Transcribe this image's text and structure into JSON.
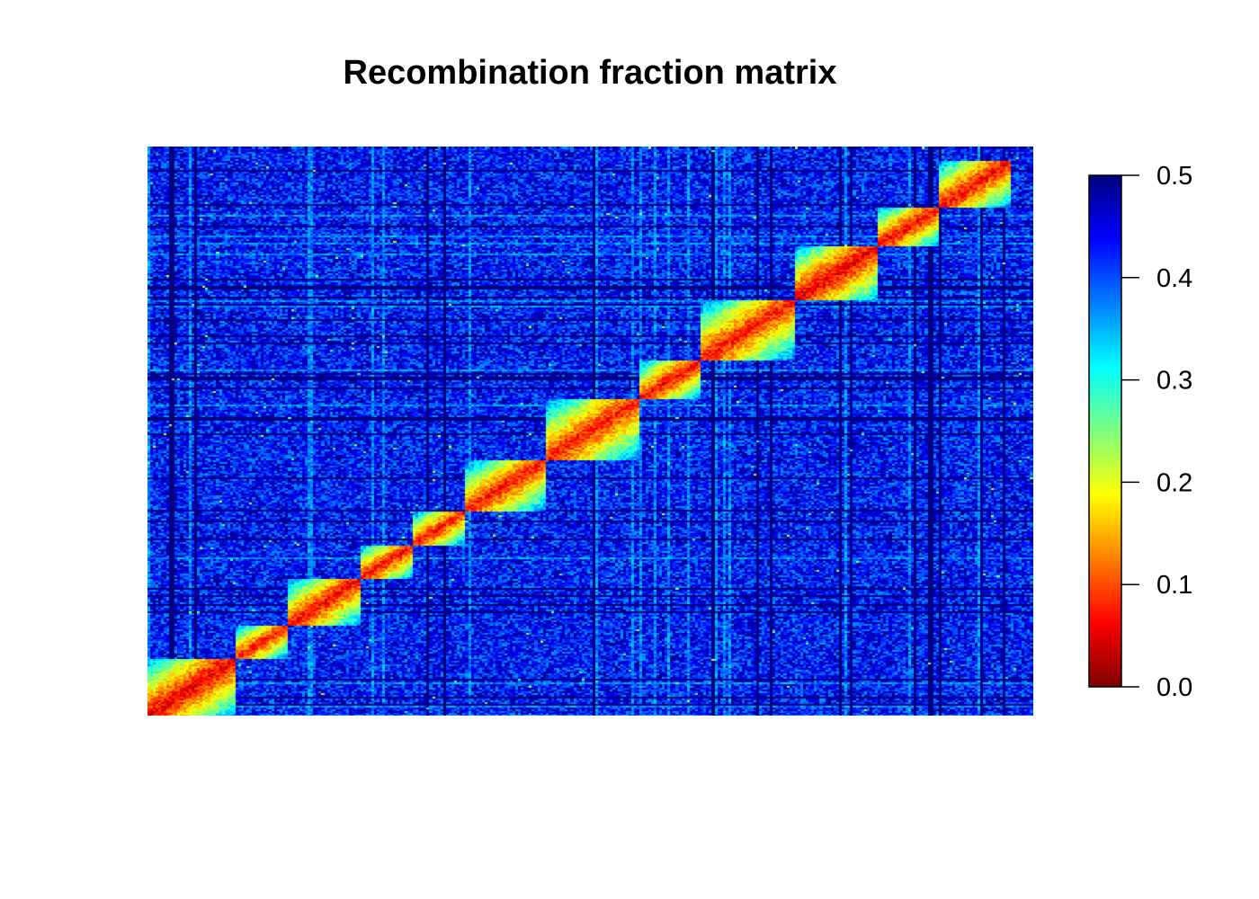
{
  "chart_data": {
    "type": "heatmap",
    "title": "Recombination fraction matrix",
    "xlabel": "",
    "ylabel": "",
    "value_range": [
      0.0,
      0.5
    ],
    "colorbar": {
      "ticks": [
        "0.0",
        "0.1",
        "0.2",
        "0.3",
        "0.4",
        "0.5"
      ],
      "tick_values": [
        0.0,
        0.1,
        0.2,
        0.3,
        0.4,
        0.5
      ],
      "colors": [
        "#7f0000",
        "#ff0000",
        "#ff7f00",
        "#ffff00",
        "#7fff7f",
        "#00ffff",
        "#007fff",
        "#0000ff",
        "#00007f"
      ],
      "placement": "right"
    },
    "linkage_groups": [
      {
        "start": 0.0,
        "end": 0.1,
        "r_within": 0.05
      },
      {
        "start": 0.1,
        "end": 0.16,
        "r_within": 0.07
      },
      {
        "start": 0.16,
        "end": 0.24,
        "r_within": 0.06
      },
      {
        "start": 0.24,
        "end": 0.3,
        "r_within": 0.06
      },
      {
        "start": 0.3,
        "end": 0.36,
        "r_within": 0.07
      },
      {
        "start": 0.36,
        "end": 0.45,
        "r_within": 0.07
      },
      {
        "start": 0.45,
        "end": 0.555,
        "r_within": 0.07
      },
      {
        "start": 0.555,
        "end": 0.625,
        "r_within": 0.06
      },
      {
        "start": 0.625,
        "end": 0.73,
        "r_within": 0.07
      },
      {
        "start": 0.73,
        "end": 0.825,
        "r_within": 0.05
      },
      {
        "start": 0.825,
        "end": 0.895,
        "r_within": 0.06
      },
      {
        "start": 0.895,
        "end": 0.975,
        "r_within": 0.06
      }
    ],
    "background_r": 0.43
  }
}
